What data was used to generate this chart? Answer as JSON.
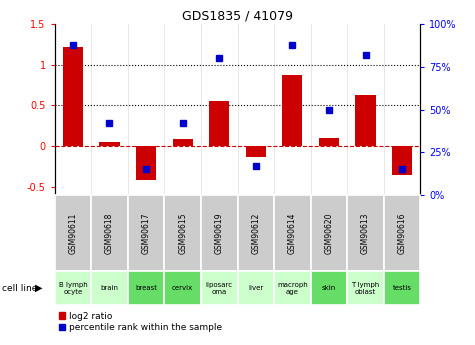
{
  "title": "GDS1835 / 41079",
  "gsm_labels": [
    "GSM90611",
    "GSM90618",
    "GSM90617",
    "GSM90615",
    "GSM90619",
    "GSM90612",
    "GSM90614",
    "GSM90620",
    "GSM90613",
    "GSM90616"
  ],
  "cell_lines": [
    "B lymph\nocyte",
    "brain",
    "breast",
    "cervix",
    "liposarc\noma",
    "liver",
    "macroph\nage",
    "skin",
    "T lymph\noblast",
    "testis"
  ],
  "cell_line_colors": [
    "#ccffcc",
    "#ccffcc",
    "#66dd66",
    "#66dd66",
    "#ccffcc",
    "#ccffcc",
    "#ccffcc",
    "#66dd66",
    "#ccffcc",
    "#66dd66"
  ],
  "log2_ratio": [
    1.22,
    0.05,
    -0.42,
    0.09,
    0.55,
    -0.13,
    0.87,
    0.1,
    0.63,
    -0.35
  ],
  "percentile_rank": [
    88,
    42,
    15,
    42,
    80,
    17,
    88,
    50,
    82,
    15
  ],
  "ylim_left": [
    -0.6,
    1.5
  ],
  "ylim_right": [
    0,
    100
  ],
  "bar_color": "#cc0000",
  "dot_color": "#0000cc",
  "zero_line_color": "#cc0000",
  "dotted_line_color": "#000000",
  "gsm_bg_color": "#cccccc",
  "yticks_left": [
    -0.5,
    0.0,
    0.5,
    1.0,
    1.5
  ],
  "ytick_labels_left": [
    "-0.5",
    "0",
    "0.5",
    "1",
    "1.5"
  ],
  "yticks_right": [
    0,
    25,
    50,
    75,
    100
  ],
  "ytick_labels_right": [
    "0%",
    "25%",
    "50%",
    "75%",
    "100%"
  ]
}
